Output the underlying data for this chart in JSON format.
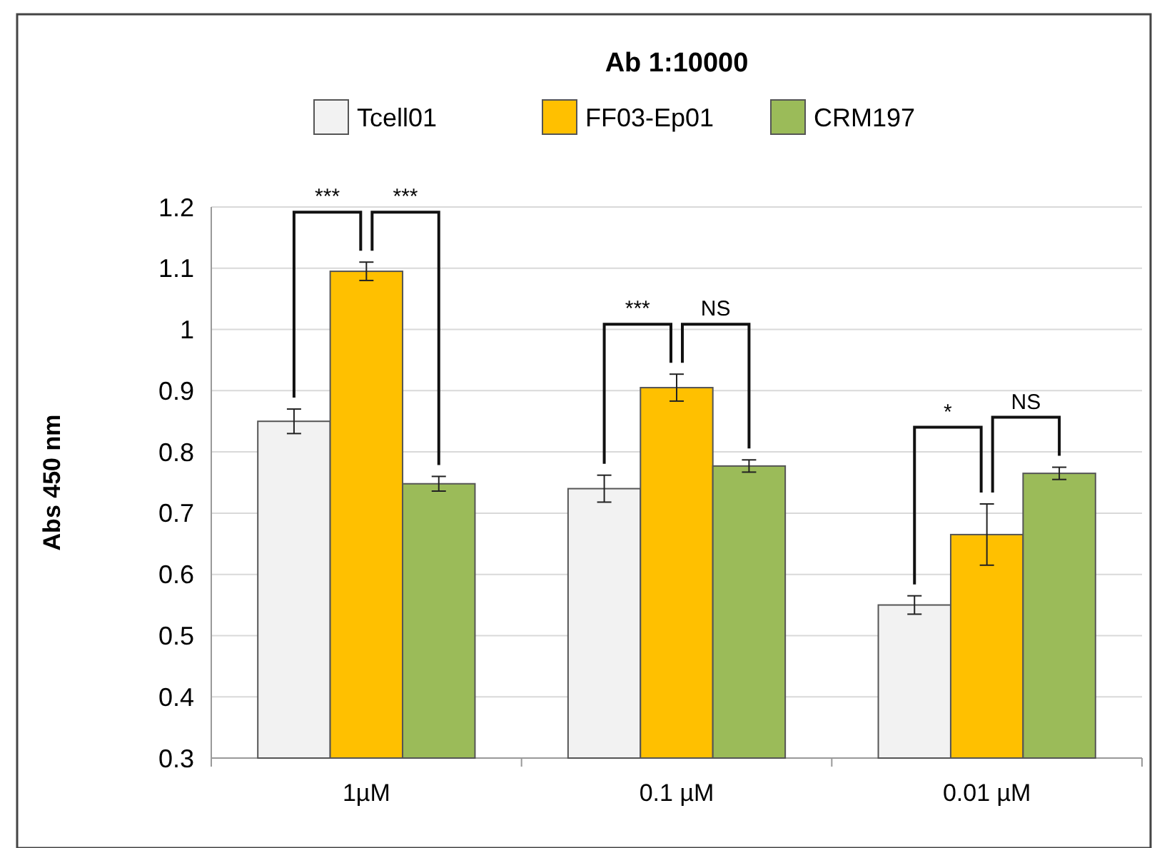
{
  "chart_data": {
    "type": "bar",
    "title": "Ab 1:10000",
    "ylabel": "Abs 450 nm",
    "categories": [
      "1µM",
      "0.1 µM",
      "0.01 µM"
    ],
    "series": [
      {
        "name": "Tcell01",
        "color": "#f2f2f2",
        "values": [
          0.85,
          0.74,
          0.55
        ],
        "errors": [
          0.02,
          0.022,
          0.015
        ]
      },
      {
        "name": "FF03-Ep01",
        "color": "#ffc000",
        "values": [
          1.095,
          0.905,
          0.665
        ],
        "errors": [
          0.015,
          0.022,
          0.05
        ]
      },
      {
        "name": "CRM197",
        "color": "#9bbb59",
        "values": [
          0.748,
          0.777,
          0.765
        ],
        "errors": [
          0.012,
          0.01,
          0.01
        ]
      }
    ],
    "ylim": [
      0.3,
      1.2
    ],
    "yticks": [
      0.3,
      0.4,
      0.5,
      0.6,
      0.7,
      0.8,
      0.9,
      1,
      1.1,
      1.2
    ],
    "grid": "y",
    "legend": "top",
    "annotations": [
      "***",
      "***",
      "***",
      "NS",
      "*",
      "NS"
    ]
  }
}
